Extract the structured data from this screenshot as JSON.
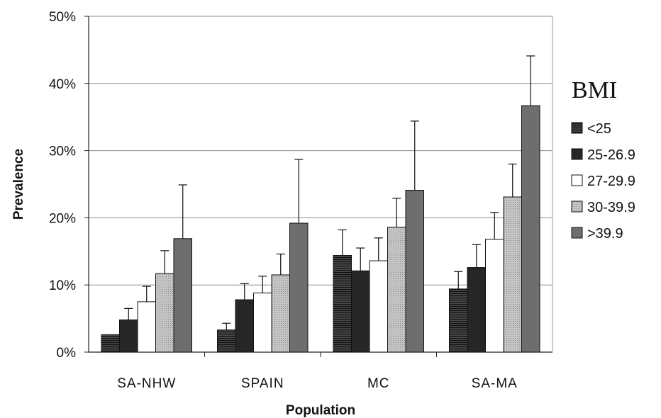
{
  "chart_data": {
    "type": "bar",
    "xlabel": "Population",
    "ylabel": "Prevalence",
    "ylim": [
      0,
      50
    ],
    "y_ticks": [
      "0%",
      "10%",
      "20%",
      "30%",
      "40%",
      "50%"
    ],
    "grid": true,
    "legend_title": "BMI",
    "legend_position": "right",
    "categories": [
      "SA-NHW",
      "SPAIN",
      "MC",
      "SA-MA"
    ],
    "series": [
      {
        "name": "<25",
        "values": [
          2.6,
          3.3,
          14.4,
          9.4
        ],
        "error_upper": [
          2.6,
          4.3,
          18.2,
          12.0
        ],
        "color": "#2e2e2e",
        "pattern": "hstripe"
      },
      {
        "name": "25-26.9",
        "values": [
          4.8,
          7.8,
          12.1,
          12.6
        ],
        "error_upper": [
          6.5,
          10.2,
          15.5,
          16.0
        ],
        "color": "#262626",
        "pattern": "solid"
      },
      {
        "name": "27-29.9",
        "values": [
          7.5,
          8.8,
          13.6,
          16.8
        ],
        "error_upper": [
          9.8,
          11.3,
          17.0,
          20.8
        ],
        "color": "#ffffff",
        "pattern": "solid"
      },
      {
        "name": "30-39.9",
        "values": [
          11.7,
          11.5,
          18.6,
          23.1
        ],
        "error_upper": [
          15.1,
          14.6,
          22.9,
          28.0
        ],
        "color": "#b8b8b8",
        "pattern": "dots"
      },
      {
        "name": ">39.9",
        "values": [
          16.9,
          19.2,
          24.1,
          36.7
        ],
        "error_upper": [
          24.9,
          28.7,
          34.4,
          44.1
        ],
        "color": "#6e6e6e",
        "pattern": "solid"
      }
    ]
  }
}
